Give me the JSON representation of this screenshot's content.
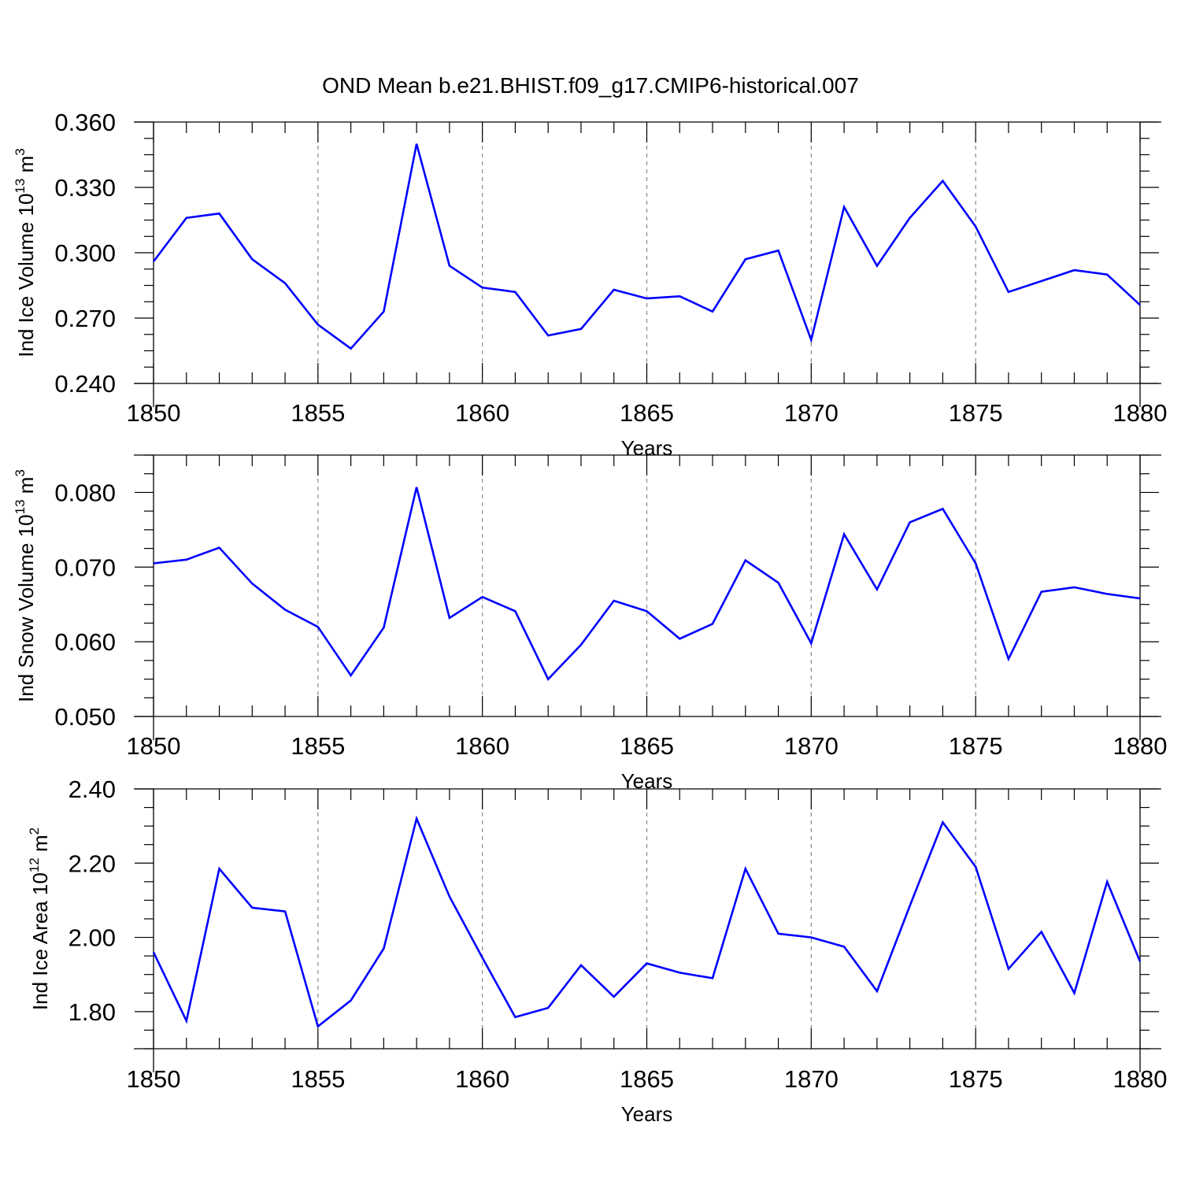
{
  "title": "OND Mean b.e21.BHIST.f09_g17.CMIP6-historical.007",
  "colors": {
    "line": "#0000ff",
    "axis": "#000000",
    "grid": "#888888"
  },
  "chart_data": [
    {
      "type": "line",
      "ylabel": "Ind Ice Volume",
      "yunit_base": "10",
      "yunit_exp": "13",
      "yunit_tail": " m",
      "yunit_power": "3",
      "xlabel": "Years",
      "xlim": [
        1850,
        1880
      ],
      "ylim": [
        0.24,
        0.36
      ],
      "yticks": [
        "0.240",
        "0.270",
        "0.300",
        "0.330",
        "0.360"
      ],
      "ytick_values": [
        0.24,
        0.27,
        0.3,
        0.33,
        0.36
      ],
      "xticks": [
        "1850",
        "1855",
        "1860",
        "1865",
        "1870",
        "1875",
        "1880"
      ],
      "xtick_values": [
        1850,
        1855,
        1860,
        1865,
        1870,
        1875,
        1880
      ],
      "x": [
        1850,
        1851,
        1852,
        1853,
        1854,
        1855,
        1856,
        1857,
        1858,
        1859,
        1860,
        1861,
        1862,
        1863,
        1864,
        1865,
        1866,
        1867,
        1868,
        1869,
        1870,
        1871,
        1872,
        1873,
        1874,
        1875,
        1876,
        1877,
        1878,
        1879,
        1880
      ],
      "values": [
        0.296,
        0.316,
        0.318,
        0.297,
        0.286,
        0.267,
        0.256,
        0.273,
        0.35,
        0.294,
        0.284,
        0.282,
        0.262,
        0.265,
        0.283,
        0.279,
        0.28,
        0.273,
        0.297,
        0.301,
        0.26,
        0.321,
        0.294,
        0.316,
        0.333,
        0.312,
        0.282,
        0.287,
        0.292,
        0.29,
        0.276
      ]
    },
    {
      "type": "line",
      "ylabel": "Ind Snow Volume",
      "yunit_base": "10",
      "yunit_exp": "13",
      "yunit_tail": " m",
      "yunit_power": "3",
      "xlabel": "Years",
      "xlim": [
        1850,
        1880
      ],
      "ylim": [
        0.05,
        0.085
      ],
      "yticks": [
        "0.050",
        "0.060",
        "0.070",
        "0.080"
      ],
      "ytick_values": [
        0.05,
        0.06,
        0.07,
        0.08
      ],
      "xticks": [
        "1850",
        "1855",
        "1860",
        "1865",
        "1870",
        "1875",
        "1880"
      ],
      "xtick_values": [
        1850,
        1855,
        1860,
        1865,
        1870,
        1875,
        1880
      ],
      "x": [
        1850,
        1851,
        1852,
        1853,
        1854,
        1855,
        1856,
        1857,
        1858,
        1859,
        1860,
        1861,
        1862,
        1863,
        1864,
        1865,
        1866,
        1867,
        1868,
        1869,
        1870,
        1871,
        1872,
        1873,
        1874,
        1875,
        1876,
        1877,
        1878,
        1879,
        1880
      ],
      "values": [
        0.0705,
        0.071,
        0.0726,
        0.0678,
        0.0643,
        0.062,
        0.0555,
        0.0619,
        0.0807,
        0.0632,
        0.066,
        0.0641,
        0.055,
        0.0596,
        0.0655,
        0.0641,
        0.0604,
        0.0624,
        0.0709,
        0.0679,
        0.0598,
        0.0744,
        0.067,
        0.076,
        0.0778,
        0.0705,
        0.0577,
        0.0667,
        0.0673,
        0.0664,
        0.0658
      ]
    },
    {
      "type": "line",
      "ylabel": "Ind Ice Area",
      "yunit_base": "10",
      "yunit_exp": "12",
      "yunit_tail": " m",
      "yunit_power": "2",
      "xlabel": "Years",
      "xlim": [
        1850,
        1880
      ],
      "ylim": [
        1.7,
        2.4
      ],
      "yticks": [
        "1.80",
        "2.00",
        "2.20",
        "2.40"
      ],
      "ytick_values": [
        1.8,
        2.0,
        2.2,
        2.4
      ],
      "xticks": [
        "1850",
        "1855",
        "1860",
        "1865",
        "1870",
        "1875",
        "1880"
      ],
      "xtick_values": [
        1850,
        1855,
        1860,
        1865,
        1870,
        1875,
        1880
      ],
      "x": [
        1850,
        1851,
        1852,
        1853,
        1854,
        1855,
        1856,
        1857,
        1858,
        1859,
        1860,
        1861,
        1862,
        1863,
        1864,
        1865,
        1866,
        1867,
        1868,
        1869,
        1870,
        1871,
        1872,
        1873,
        1874,
        1875,
        1876,
        1877,
        1878,
        1879,
        1880
      ],
      "values": [
        1.96,
        1.775,
        2.185,
        2.08,
        2.07,
        1.76,
        1.83,
        1.97,
        2.32,
        2.11,
        1.945,
        1.785,
        1.81,
        1.925,
        1.84,
        1.93,
        1.905,
        1.89,
        2.185,
        2.01,
        2.0,
        1.975,
        1.855,
        2.085,
        2.31,
        2.19,
        1.915,
        2.015,
        1.85,
        2.15,
        1.935
      ]
    }
  ]
}
